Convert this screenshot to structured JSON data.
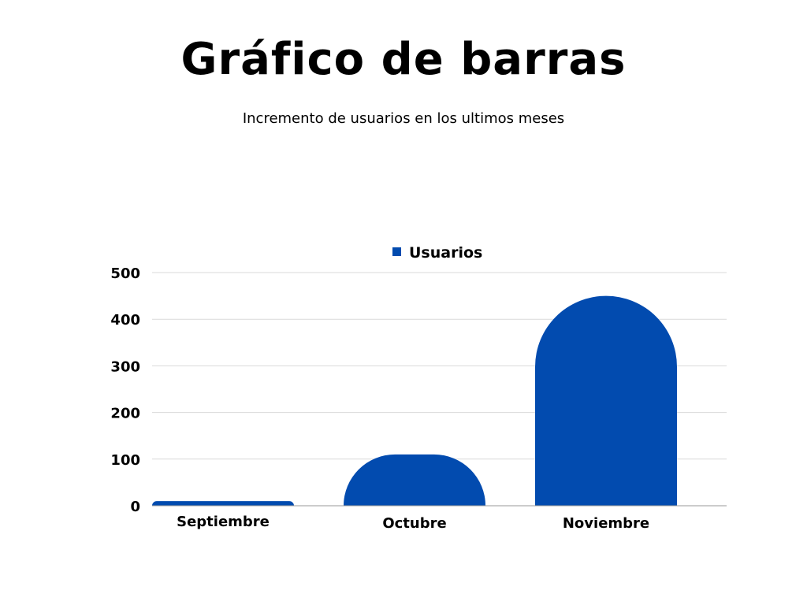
{
  "chart_data": {
    "type": "bar",
    "title": "Gráfico de barras",
    "subtitle": "Incremento de usuarios en los ultimos meses",
    "categories": [
      "Septiembre",
      "Octubre",
      "Noviembre"
    ],
    "series": [
      {
        "name": "Usuarios",
        "values": [
          10,
          110,
          450
        ],
        "color": "#024BAF"
      }
    ],
    "ylim": [
      0,
      500
    ],
    "yticks": [
      0,
      100,
      200,
      300,
      400,
      500
    ],
    "grid": true,
    "legend": "top-center",
    "gridColor": "#D9D9D9",
    "axisColor": "#999999"
  }
}
